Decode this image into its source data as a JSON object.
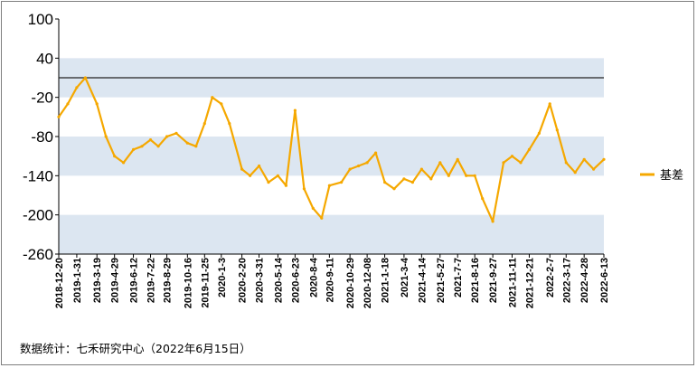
{
  "chart_data": {
    "type": "line",
    "ylim": [
      -260,
      100
    ],
    "y_ticks": [
      "100",
      "40",
      "-20",
      "-80",
      "-140",
      "-200",
      "-260"
    ],
    "y_tick_values": [
      100,
      40,
      -20,
      -80,
      -140,
      -200,
      -260
    ],
    "bands": [
      [
        -20,
        40
      ],
      [
        -140,
        -80
      ],
      [
        -260,
        -200
      ]
    ],
    "reference_line": 10,
    "x_tick_labels": [
      "2018-12-20",
      "2019-1-31",
      "2019-3-19",
      "2019-4-29",
      "2019-6-12",
      "2019-7-22",
      "2019-8-29",
      "2019-10-16",
      "2019-11-25",
      "2020-1-3",
      "2020-2-20",
      "2020-3-31",
      "2020-5-14",
      "2020-6-23",
      "2020-8-4",
      "2020-9-11",
      "2020-10-29",
      "2020-12-08",
      "2021-1-18",
      "2021-3-4",
      "2021-4-14",
      "2021-5-27",
      "2021-7-7",
      "2021-8-16",
      "2021-9-27",
      "2021-11-11",
      "2021-12-21",
      "2022-2-7",
      "2022-3-17",
      "2022-4-28",
      "2022-6-13"
    ],
    "series": [
      {
        "name": "基差",
        "color": "#f5a800",
        "x": [
          "2018-12-20",
          "2019-1-10",
          "2019-1-31",
          "2019-2-20",
          "2019-3-19",
          "2019-4-9",
          "2019-4-29",
          "2019-5-20",
          "2019-6-12",
          "2019-7-2",
          "2019-7-22",
          "2019-8-9",
          "2019-8-29",
          "2019-9-20",
          "2019-10-16",
          "2019-11-5",
          "2019-11-25",
          "2019-12-13",
          "2020-1-3",
          "2020-1-22",
          "2020-2-20",
          "2020-3-10",
          "2020-3-31",
          "2020-4-22",
          "2020-5-14",
          "2020-6-2",
          "2020-6-23",
          "2020-7-14",
          "2020-8-4",
          "2020-8-24",
          "2020-9-11",
          "2020-10-9",
          "2020-10-29",
          "2020-11-18",
          "2020-12-08",
          "2020-12-28",
          "2021-1-18",
          "2021-2-9",
          "2021-3-4",
          "2021-3-24",
          "2021-4-14",
          "2021-5-6",
          "2021-5-27",
          "2021-6-16",
          "2021-7-7",
          "2021-7-27",
          "2021-8-16",
          "2021-9-3",
          "2021-9-27",
          "2021-10-22",
          "2021-11-11",
          "2021-12-1",
          "2021-12-21",
          "2022-1-13",
          "2022-2-7",
          "2022-2-24",
          "2022-3-17",
          "2022-4-7",
          "2022-4-28",
          "2022-5-20",
          "2022-6-13"
        ],
        "values": [
          -50,
          -30,
          -5,
          10,
          -30,
          -80,
          -110,
          -120,
          -100,
          -95,
          -85,
          -95,
          -80,
          -75,
          -90,
          -95,
          -60,
          -20,
          -30,
          -60,
          -130,
          -140,
          -125,
          -150,
          -140,
          -155,
          -40,
          -160,
          -190,
          -205,
          -155,
          -150,
          -130,
          -125,
          -120,
          -105,
          -150,
          -160,
          -145,
          -150,
          -130,
          -145,
          -120,
          -140,
          -115,
          -140,
          -140,
          -175,
          -210,
          -120,
          -110,
          -120,
          -100,
          -75,
          -30,
          -70,
          -120,
          -135,
          -115,
          -130,
          -115
        ]
      }
    ],
    "legend": "right",
    "source_note": "数据统计：七禾研究中心（2022年6月15日）"
  }
}
